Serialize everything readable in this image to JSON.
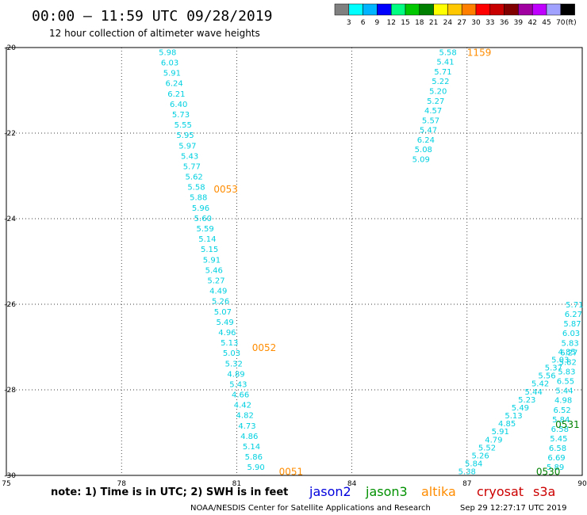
{
  "header": {
    "title": "00:00 – 11:59 UTC 09/28/2019",
    "subtitle": "12 hour collection of altimeter wave heights"
  },
  "color_scale": {
    "labels": [
      "3",
      "6",
      "9",
      "12",
      "15",
      "18",
      "21",
      "24",
      "27",
      "30",
      "33",
      "36",
      "39",
      "42",
      "45",
      "70"
    ],
    "unit": "(ft)",
    "colors": [
      "#808080",
      "#00ffff",
      "#00b4ff",
      "#0000ff",
      "#00ff80",
      "#00c800",
      "#008000",
      "#ffff00",
      "#ffc800",
      "#ff8000",
      "#ff0000",
      "#c80000",
      "#800000",
      "#a000a0",
      "#c000ff",
      "#a0a0ff",
      "#000000"
    ]
  },
  "footer": {
    "note": "note: 1) Time is in UTC; 2) SWH is in feet",
    "credit": "NOAA/NESDIS Center for Satellite Applications and Research",
    "timestamp": "Sep 29 12:27:17 UTC 2019"
  },
  "legend": [
    {
      "name": "jason2",
      "color": "#0000dd"
    },
    {
      "name": "jason3",
      "color": "#009000"
    },
    {
      "name": "altika",
      "color": "#ff8c00"
    },
    {
      "name": "cryosat",
      "color": "#cc0000"
    },
    {
      "name": "s3a",
      "color": "#cc0000"
    }
  ],
  "chart_data": {
    "type": "scatter",
    "xlabel": "",
    "ylabel": "",
    "xlim": [
      75,
      90
    ],
    "ylim": [
      -30,
      -20
    ],
    "x_ticks": [
      "75",
      "78",
      "81",
      "84",
      "87",
      "90"
    ],
    "y_ticks": [
      "-20",
      "-22",
      "-24",
      "-26",
      "-28",
      "-30"
    ],
    "grid": true,
    "value_color": "#00d0e0",
    "tracks": [
      {
        "satellite": "altika",
        "color": "#ff8c00",
        "time_labels": [
          {
            "text": "1159",
            "x": 87.0,
            "y": -20.1
          }
        ]
      },
      {
        "satellite": "altika",
        "color": "#ff8c00",
        "time_labels": [
          {
            "text": "0053",
            "x": 80.4,
            "y": -23.3
          },
          {
            "text": "0052",
            "x": 81.4,
            "y": -27.0
          },
          {
            "text": "0051",
            "x": 82.1,
            "y": -29.9
          }
        ]
      },
      {
        "satellite": "jason3",
        "color": "#008000",
        "time_labels": [
          {
            "text": "0531",
            "x": 89.3,
            "y": -28.8
          },
          {
            "text": "0530",
            "x": 88.8,
            "y": -29.9
          }
        ]
      }
    ],
    "points_a": {
      "x_start": 79.2,
      "x_end": 81.5,
      "y_start": -20.1,
      "y_end": -29.8,
      "values": [
        "5.98",
        "6.03",
        "5.91",
        "6.24",
        "6.21",
        "6.40",
        "5.73",
        "5.55",
        "5.95",
        "5.97",
        "5.43",
        "5.77",
        "5.62",
        "5.58",
        "5.88",
        "5.96",
        "5.60",
        "5.59",
        "5.14",
        "5.15",
        "5.91",
        "5.46",
        "5.27",
        "4.49",
        "5.26",
        "5.07",
        "5.49",
        "4.96",
        "5.13",
        "5.03",
        "5.32",
        "4.89",
        "5.43",
        "4.66",
        "4.42",
        "4.82",
        "4.73",
        "4.86",
        "5.14",
        "5.86",
        "5.90"
      ]
    },
    "points_b": {
      "x_start": 86.5,
      "x_end": 85.8,
      "y_start": -20.1,
      "y_end": -22.6,
      "values": [
        "5.58",
        "5.41",
        "5.71",
        "5.22",
        "5.20",
        "5.27",
        "4.57",
        "5.57",
        "5.47",
        "6.24",
        "5.08",
        "5.09"
      ]
    },
    "points_c": {
      "x_start": 89.6,
      "x_end": 87.0,
      "y_start": -27.1,
      "y_end": -29.9,
      "values": [
        "4.85",
        "5.03",
        "5.37",
        "5.56",
        "5.42",
        "5.44",
        "5.23",
        "5.49",
        "5.13",
        "4.85",
        "5.91",
        "4.79",
        "5.52",
        "5.26",
        "5.84",
        "5.38"
      ]
    },
    "points_d": {
      "x_start": 89.8,
      "x_end": 89.3,
      "y_start": -26.0,
      "y_end": -29.8,
      "values": [
        "5.71",
        "6.27",
        "5.87",
        "6.03",
        "5.83",
        "6.27",
        "5.82",
        "5.83",
        "6.55",
        "5.44",
        "4.98",
        "6.52",
        "5.84",
        "6.58",
        "5.45",
        "6.58",
        "6.69",
        "5.89"
      ]
    }
  }
}
